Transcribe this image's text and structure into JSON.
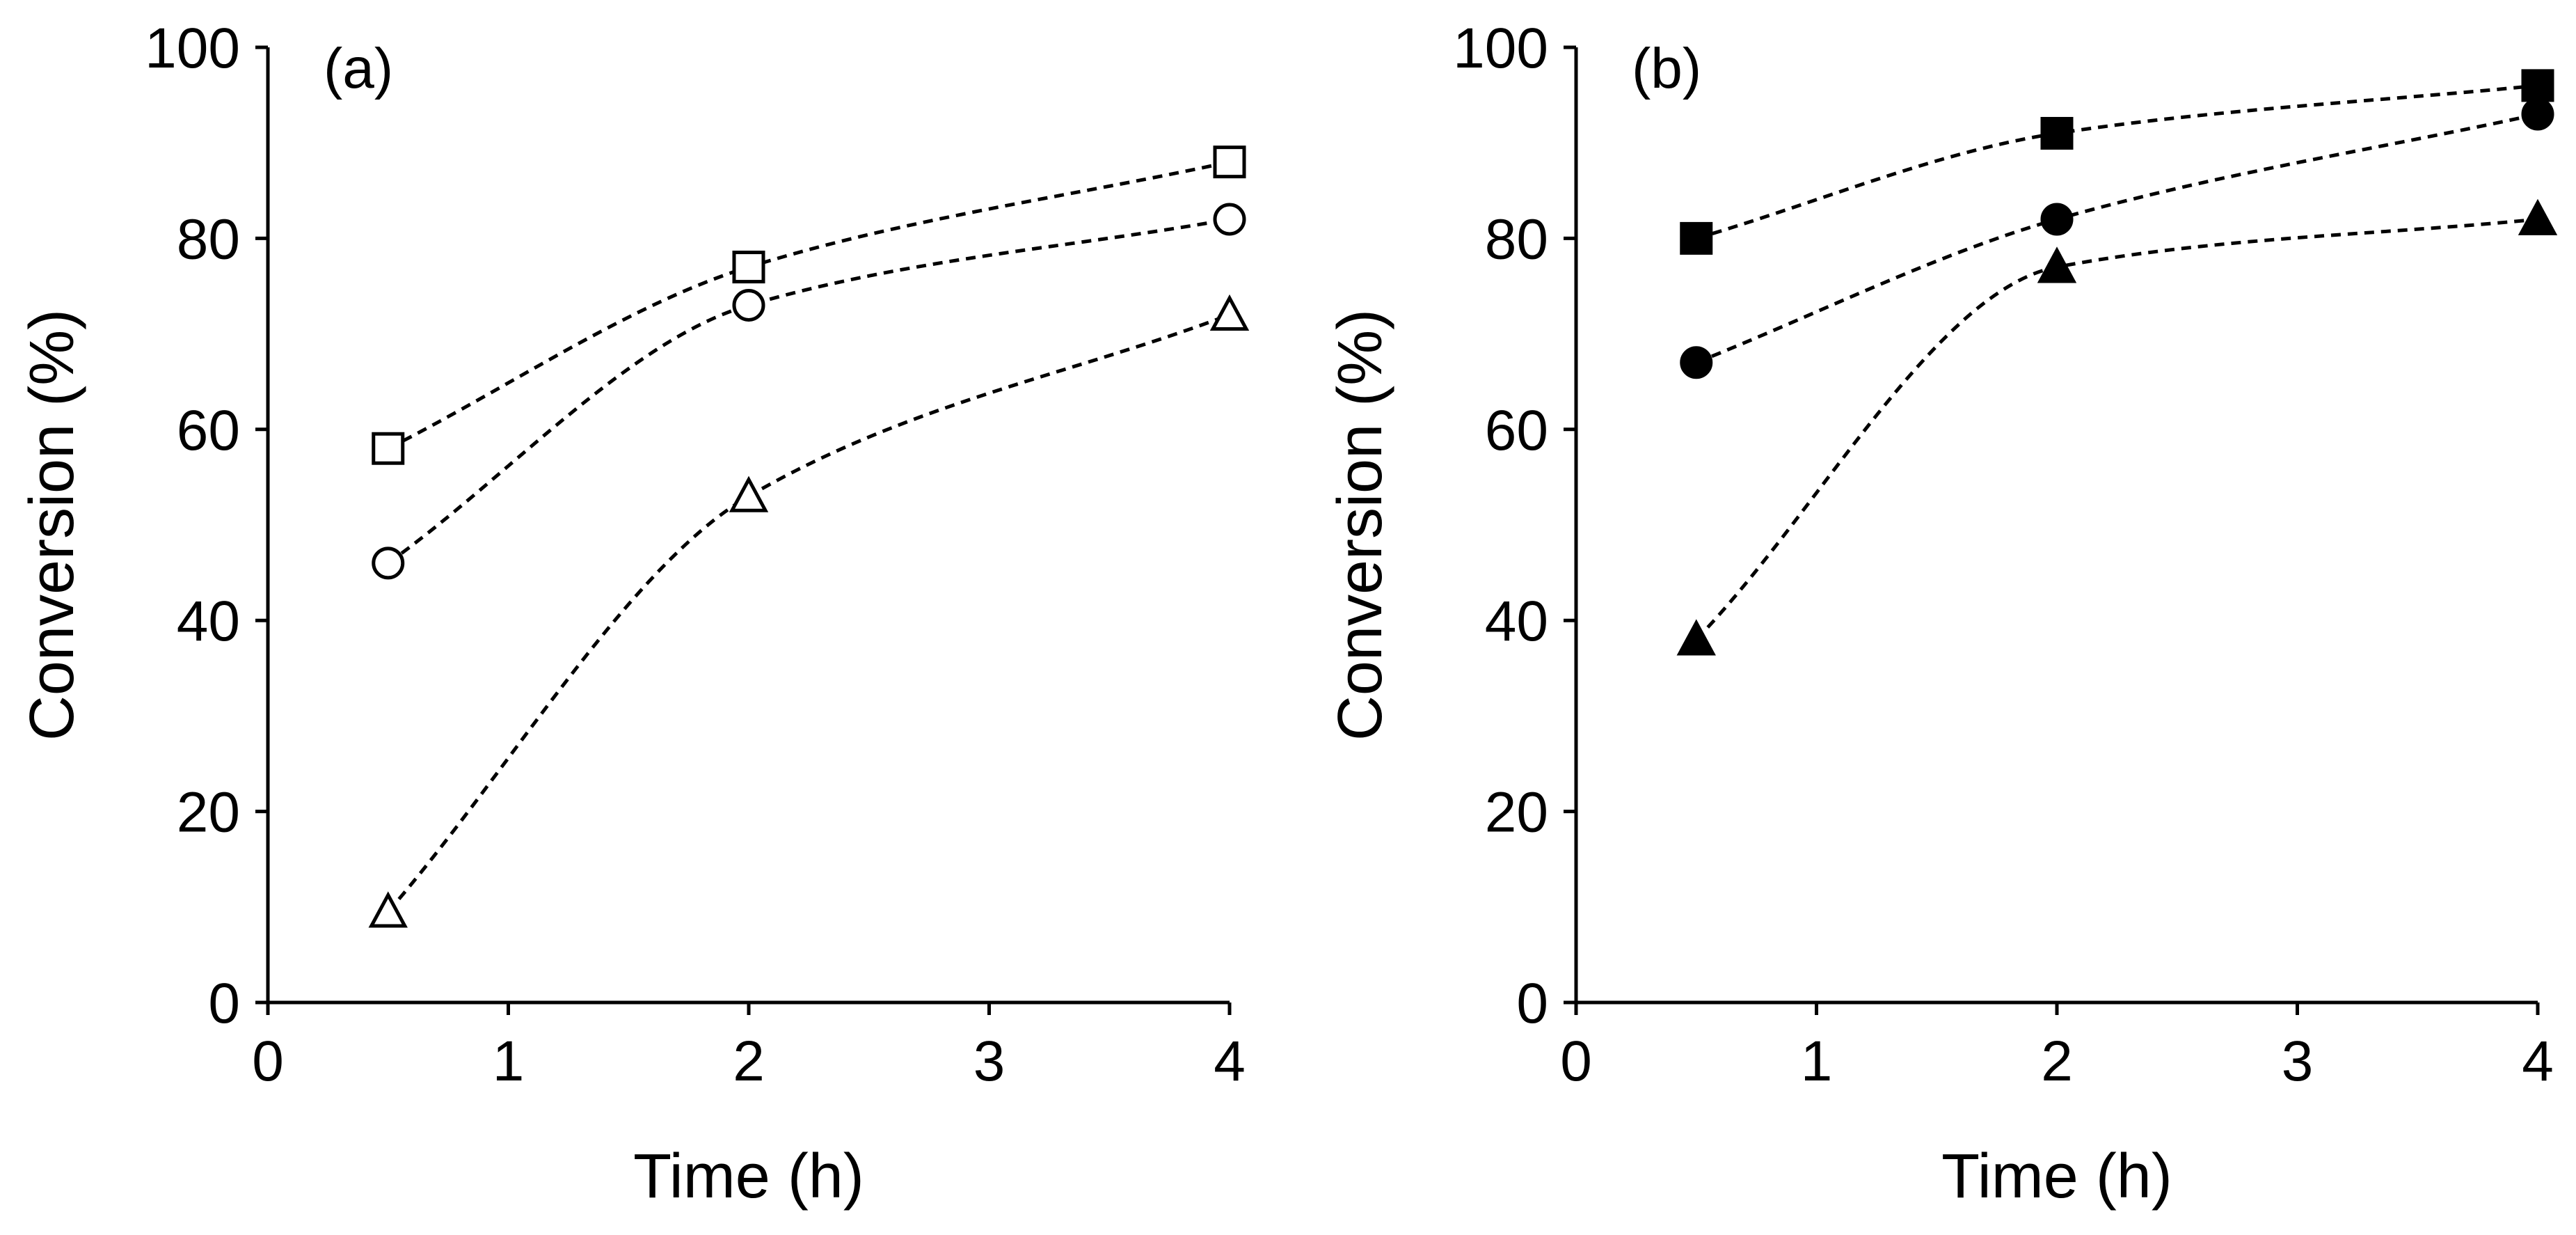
{
  "chart_data": [
    {
      "type": "line",
      "panel_label": "(a)",
      "title": "",
      "xlabel": "Time (h)",
      "ylabel": "Conversion (%)",
      "xlim": [
        0,
        4
      ],
      "ylim": [
        0,
        100
      ],
      "xticks": [
        0,
        1,
        2,
        3,
        4
      ],
      "yticks": [
        0,
        20,
        40,
        60,
        80,
        100
      ],
      "grid": false,
      "marker_fill": "open",
      "series": [
        {
          "name": "square",
          "marker": "square",
          "x": [
            0.5,
            2,
            4
          ],
          "values": [
            58,
            77,
            88
          ]
        },
        {
          "name": "circle",
          "marker": "circle",
          "x": [
            0.5,
            2,
            4
          ],
          "values": [
            46,
            73,
            82
          ]
        },
        {
          "name": "triangle",
          "marker": "triangle",
          "x": [
            0.5,
            2,
            4
          ],
          "values": [
            9.5,
            53,
            72
          ]
        }
      ]
    },
    {
      "type": "line",
      "panel_label": "(b)",
      "title": "",
      "xlabel": "Time (h)",
      "ylabel": "Conversion (%)",
      "xlim": [
        0,
        4
      ],
      "ylim": [
        0,
        100
      ],
      "xticks": [
        0,
        1,
        2,
        3,
        4
      ],
      "yticks": [
        0,
        20,
        40,
        60,
        80,
        100
      ],
      "grid": false,
      "marker_fill": "filled",
      "series": [
        {
          "name": "square",
          "marker": "square",
          "x": [
            0.5,
            2,
            4
          ],
          "values": [
            80,
            91,
            96
          ]
        },
        {
          "name": "circle",
          "marker": "circle",
          "x": [
            0.5,
            2,
            4
          ],
          "values": [
            67,
            82,
            93
          ]
        },
        {
          "name": "triangle",
          "marker": "triangle",
          "x": [
            0.5,
            2,
            4
          ],
          "values": [
            38,
            77,
            82
          ]
        }
      ]
    }
  ]
}
